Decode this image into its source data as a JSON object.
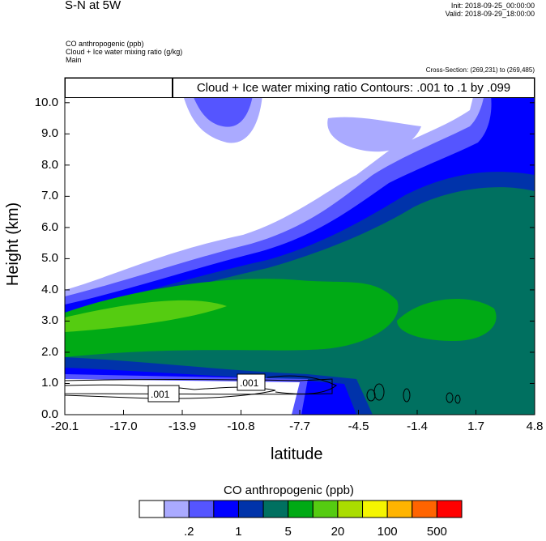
{
  "header": {
    "title": "S-N at 5W",
    "init": "Init: 2018-09-25_00:00:00",
    "valid": "Valid: 2018-09-29_18:00:00",
    "fields": [
      "CO anthropogenic   (ppb)",
      "Cloud + Ice water mixing ratio   (g/kg)",
      "Main"
    ],
    "cross_section": "Cross-Section: (269,231) to (269,485)"
  },
  "chart_data": {
    "type": "heatmap",
    "title": "S-N at 5W",
    "contour_label": "Cloud + Ice water mixing ratio Contours: .001 to .1 by .099",
    "contour_values": [
      ".001",
      ".001"
    ],
    "xlabel": "latitude",
    "ylabel": "Height (km)",
    "xticks": [
      "-20.1",
      "-17.0",
      "-13.9",
      "-10.8",
      "-7.7",
      "-4.5",
      "-1.4",
      "1.7",
      "4.8"
    ],
    "yticks": [
      "0.0",
      "1.0",
      "2.0",
      "3.0",
      "4.0",
      "5.0",
      "6.0",
      "7.0",
      "8.0",
      "9.0",
      "10.0"
    ],
    "xlim": [
      -20.1,
      4.8
    ],
    "ylim": [
      0,
      10.8
    ],
    "colorbar": {
      "title": "CO anthropogenic  (ppb)",
      "colors": [
        "#ffffff",
        "#aaaaff",
        "#5555ff",
        "#0000ff",
        "#0033aa",
        "#007060",
        "#00aa15",
        "#55cc11",
        "#aadd00",
        "#f5f500",
        "#ffb400",
        "#ff6400",
        "#ff0000"
      ],
      "labels": [
        ".2",
        "1",
        "5",
        "20",
        "100",
        "500"
      ]
    }
  }
}
